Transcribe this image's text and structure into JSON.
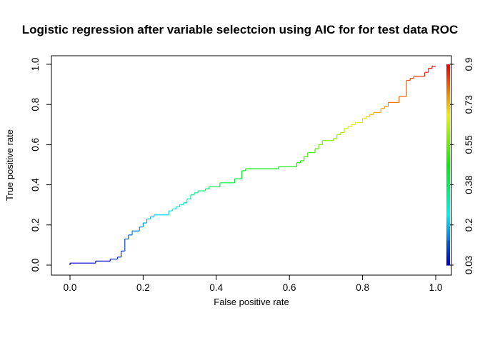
{
  "chart_data": {
    "type": "line",
    "title": "Logistic regression after variable selectcion using AIC for for test data ROC",
    "xlabel": "False positive rate",
    "ylabel": "True positive rate",
    "xlim": [
      0,
      1
    ],
    "ylim": [
      0,
      1
    ],
    "xticks": [
      "0.0",
      "0.2",
      "0.4",
      "0.6",
      "0.8",
      "1.0"
    ],
    "yticks": [
      "0.0",
      "0.2",
      "0.4",
      "0.6",
      "0.8",
      "1.0"
    ],
    "grid": false,
    "legend": "none",
    "colorbar": {
      "position": "right",
      "ticks": [
        "0.03",
        "0.2",
        "0.38",
        "0.55",
        "0.73",
        "0.9"
      ],
      "range": [
        0.03,
        0.9
      ],
      "palette": "rainbow (red = high cutoff, blue = low cutoff)"
    },
    "series": [
      {
        "x": [
          0.0,
          0.0,
          0.07,
          0.07,
          0.11,
          0.11,
          0.13,
          0.13,
          0.14,
          0.14,
          0.15,
          0.15,
          0.16,
          0.16,
          0.17,
          0.17,
          0.19,
          0.19,
          0.2,
          0.2,
          0.21,
          0.21,
          0.22,
          0.22,
          0.23,
          0.23,
          0.27,
          0.27,
          0.28,
          0.28,
          0.29,
          0.29,
          0.3,
          0.3,
          0.31,
          0.31,
          0.32,
          0.32,
          0.33,
          0.33,
          0.34,
          0.34,
          0.35,
          0.35,
          0.37,
          0.37,
          0.38,
          0.38,
          0.41,
          0.41,
          0.45,
          0.45,
          0.47,
          0.47,
          0.48,
          0.48,
          0.57,
          0.57,
          0.62,
          0.62,
          0.63,
          0.63,
          0.64,
          0.64,
          0.65,
          0.65,
          0.67,
          0.67,
          0.68,
          0.68,
          0.69,
          0.69,
          0.72,
          0.72,
          0.73,
          0.73,
          0.74,
          0.74,
          0.75,
          0.75,
          0.76,
          0.76,
          0.77,
          0.77,
          0.78,
          0.78,
          0.8,
          0.8,
          0.81,
          0.81,
          0.82,
          0.82,
          0.83,
          0.83,
          0.85,
          0.85,
          0.86,
          0.86,
          0.87,
          0.87,
          0.9,
          0.9,
          0.92,
          0.92,
          0.93,
          0.93,
          0.94,
          0.94,
          0.97,
          0.97,
          0.98,
          0.98,
          0.99,
          0.99,
          1.0
        ],
        "y": [
          0.0,
          0.01,
          0.01,
          0.02,
          0.02,
          0.03,
          0.03,
          0.04,
          0.04,
          0.07,
          0.07,
          0.13,
          0.13,
          0.15,
          0.15,
          0.17,
          0.17,
          0.19,
          0.19,
          0.21,
          0.21,
          0.23,
          0.23,
          0.24,
          0.24,
          0.25,
          0.25,
          0.27,
          0.27,
          0.28,
          0.28,
          0.29,
          0.29,
          0.3,
          0.3,
          0.31,
          0.31,
          0.33,
          0.33,
          0.35,
          0.35,
          0.36,
          0.36,
          0.37,
          0.37,
          0.38,
          0.38,
          0.39,
          0.39,
          0.41,
          0.41,
          0.43,
          0.43,
          0.47,
          0.47,
          0.48,
          0.48,
          0.49,
          0.49,
          0.51,
          0.51,
          0.52,
          0.52,
          0.54,
          0.54,
          0.56,
          0.56,
          0.58,
          0.58,
          0.6,
          0.6,
          0.62,
          0.62,
          0.63,
          0.63,
          0.65,
          0.65,
          0.66,
          0.66,
          0.68,
          0.68,
          0.69,
          0.69,
          0.7,
          0.7,
          0.71,
          0.71,
          0.73,
          0.73,
          0.74,
          0.74,
          0.75,
          0.75,
          0.76,
          0.76,
          0.78,
          0.78,
          0.79,
          0.79,
          0.81,
          0.81,
          0.84,
          0.84,
          0.92,
          0.92,
          0.93,
          0.93,
          0.94,
          0.94,
          0.96,
          0.96,
          0.98,
          0.98,
          0.99,
          0.99
        ]
      }
    ]
  }
}
